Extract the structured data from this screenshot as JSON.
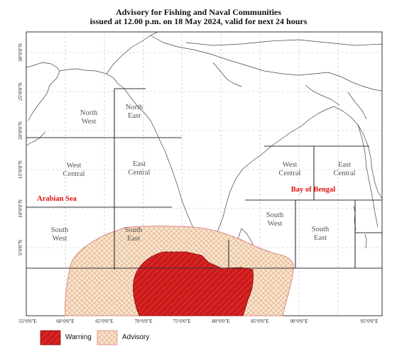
{
  "title": {
    "line1": "Advisory for Fishing and Naval Communities",
    "line2": "issued at 12.00 p.m.  on 18 May 2024, valid for next 24 hours"
  },
  "zones": {
    "north_west": [
      "North",
      "West"
    ],
    "north_east": [
      "North",
      "East"
    ],
    "west_central_arabian": [
      "West",
      "Central"
    ],
    "east_central_arabian": [
      "East",
      "Central"
    ],
    "south_west_arabian": [
      "South",
      "West"
    ],
    "south_east_arabian": [
      "South",
      "East"
    ],
    "west_central_bay": [
      "West",
      "Central"
    ],
    "east_central_bay": [
      "East",
      "Central"
    ],
    "south_west_bay": [
      "South",
      "West"
    ],
    "south_east_bay": [
      "South",
      "East"
    ]
  },
  "seas": {
    "arabian": "Arabian Sea",
    "bengal": "Bay of Bengal"
  },
  "axes": {
    "longitudes": [
      "55°0'0\"E",
      "60°0'0\"E",
      "65°0'0\"E",
      "70°0'0\"E",
      "75°0'0\"E",
      "80°0'0\"E",
      "85°0'0\"E",
      "90°0'0\"E",
      "95°0'0\"E"
    ],
    "latitudes": [
      "30°0'0\"N",
      "25°0'0\"N",
      "20°0'0\"N",
      "15°0'0\"N",
      "10°0'0\"N",
      "5°0'0\"N"
    ]
  },
  "legend": {
    "warning": "Warning",
    "advisory": "Advisory"
  },
  "colors": {
    "warning_fill": "#cc1a1a",
    "advisory_fill": "#f5e3c3",
    "advisory_hatch": "#e0a080",
    "sea_label": "#e01010",
    "zone_label": "#555555"
  }
}
